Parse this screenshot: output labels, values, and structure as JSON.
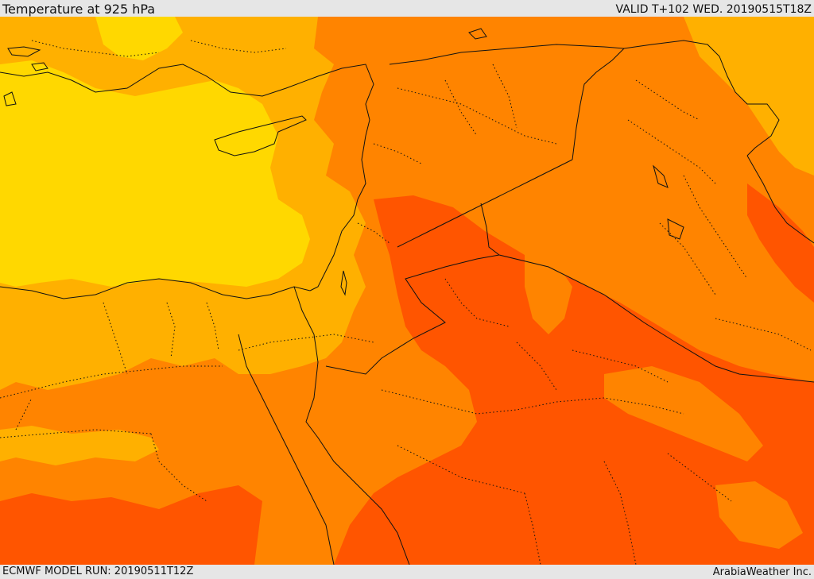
{
  "header": {
    "title": "Temperature at 925 hPa",
    "valid": "VALID T+102 WED. 20190515T18Z"
  },
  "footer": {
    "model_run": "ECMWF MODEL RUN: 20190511T12Z",
    "credit": "ArabiaWeather Inc."
  },
  "colors": {
    "coolest": "#ffd800",
    "cool": "#ffb000",
    "warm": "#ff8400",
    "hot": "#ff5500",
    "border": "#111111",
    "background": "#e6e6e6"
  }
}
